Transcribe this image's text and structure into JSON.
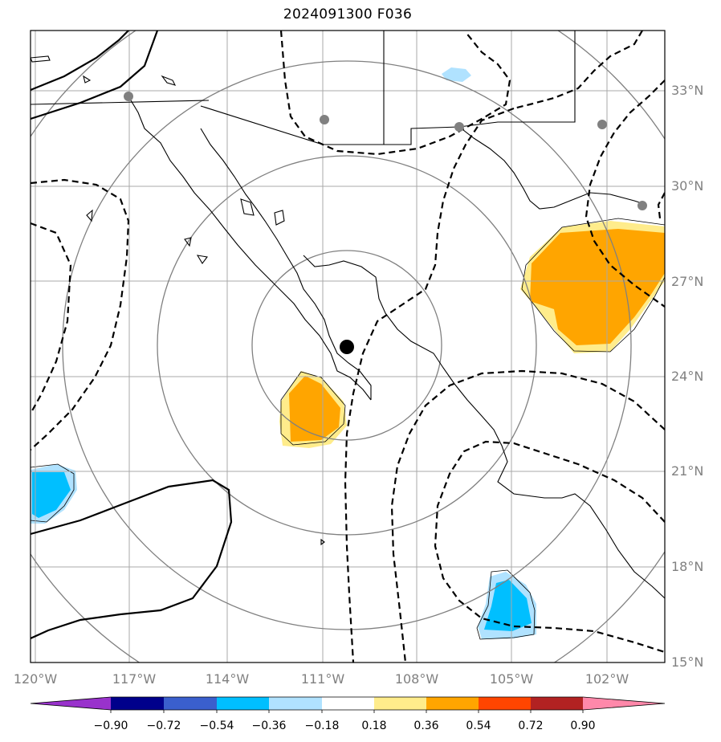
{
  "title": "2024091300 F036",
  "map": {
    "lon_labels": [
      "120°W",
      "117°W",
      "114°W",
      "111°W",
      "108°W",
      "105°W",
      "102°W"
    ],
    "lat_labels": [
      "33°N",
      "30°N",
      "27°N",
      "24°N",
      "21°N",
      "18°N",
      "15°N"
    ],
    "center_marker": "storm-center-dot",
    "range_rings": 4
  },
  "colorbar": {
    "labels": [
      "−0.90",
      "−0.72",
      "−0.54",
      "−0.36",
      "−0.18",
      "0.18",
      "0.36",
      "0.54",
      "0.72",
      "0.90"
    ],
    "colors": [
      "#9932cc",
      "#00008b",
      "#3a5fcd",
      "#00bfff",
      "#b0e2ff",
      "#ffffff",
      "#ffec8b",
      "#ffa500",
      "#ff4500",
      "#b22222",
      "#ff88aa"
    ]
  },
  "colors": {
    "positive_moderate": "#ffa500",
    "positive_light": "#ffec8b",
    "negative_moderate": "#00bfff",
    "negative_light": "#b0e2ff",
    "grid": "#a9a9a9",
    "rings": "#808080"
  }
}
